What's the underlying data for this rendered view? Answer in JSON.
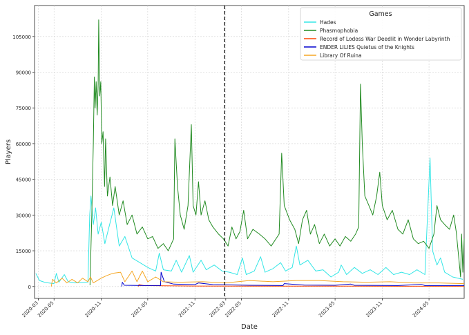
{
  "chart_data": {
    "type": "line",
    "title": "",
    "xlabel": "Date",
    "ylabel": "Players",
    "grid": true,
    "x_range": [
      "2020-02-15",
      "2024-09-15"
    ],
    "ylim": [
      -5000,
      118000
    ],
    "x_ticks": [
      "2020-03",
      "2020-05",
      "2020-11",
      "2021-05",
      "2021-11",
      "2022-03",
      "2022-05",
      "2022-11",
      "2023-05",
      "2023-11",
      "2024-05"
    ],
    "y_ticks": [
      0,
      15000,
      30000,
      45000,
      60000,
      75000,
      90000,
      105000
    ],
    "y_tick_labels": [
      "0",
      "15000",
      "30000",
      "45000",
      "60000",
      "75000",
      "90000",
      "105000"
    ],
    "vline": {
      "x": "2022-02-25",
      "style": "dashed",
      "color": "#000000"
    },
    "legend": {
      "title": "Games",
      "position": "top-right"
    },
    "series": [
      {
        "name": "Hades",
        "color": "#33e6e6",
        "points": [
          [
            "2020-02-20",
            5500
          ],
          [
            "2020-03-05",
            2500
          ],
          [
            "2020-03-25",
            1800
          ],
          [
            "2020-04-10",
            1500
          ],
          [
            "2020-05-01",
            1200
          ],
          [
            "2020-05-10",
            5500
          ],
          [
            "2020-05-20",
            1800
          ],
          [
            "2020-06-10",
            5000
          ],
          [
            "2020-06-25",
            2000
          ],
          [
            "2020-07-20",
            1500
          ],
          [
            "2020-08-20",
            1700
          ],
          [
            "2020-09-10",
            1800
          ],
          [
            "2020-09-17",
            30000
          ],
          [
            "2020-09-22",
            38000
          ],
          [
            "2020-10-01",
            26000
          ],
          [
            "2020-10-10",
            33000
          ],
          [
            "2020-10-20",
            22000
          ],
          [
            "2020-11-01",
            27000
          ],
          [
            "2020-11-15",
            18000
          ],
          [
            "2020-12-01",
            25000
          ],
          [
            "2020-12-20",
            33000
          ],
          [
            "2021-01-10",
            17000
          ],
          [
            "2021-02-01",
            21000
          ],
          [
            "2021-03-01",
            12000
          ],
          [
            "2021-04-01",
            10000
          ],
          [
            "2021-05-01",
            8000
          ],
          [
            "2021-06-01",
            6500
          ],
          [
            "2021-06-15",
            14000
          ],
          [
            "2021-07-01",
            7000
          ],
          [
            "2021-08-01",
            6500
          ],
          [
            "2021-08-20",
            11000
          ],
          [
            "2021-09-10",
            6000
          ],
          [
            "2021-10-10",
            13000
          ],
          [
            "2021-10-25",
            6000
          ],
          [
            "2021-11-25",
            11000
          ],
          [
            "2021-12-15",
            7000
          ],
          [
            "2022-01-15",
            9000
          ],
          [
            "2022-02-15",
            6500
          ],
          [
            "2022-03-15",
            6000
          ],
          [
            "2022-04-15",
            5000
          ],
          [
            "2022-05-05",
            12000
          ],
          [
            "2022-05-20",
            5000
          ],
          [
            "2022-06-20",
            6500
          ],
          [
            "2022-07-15",
            12500
          ],
          [
            "2022-08-01",
            6000
          ],
          [
            "2022-09-01",
            7500
          ],
          [
            "2022-10-01",
            10000
          ],
          [
            "2022-10-20",
            6500
          ],
          [
            "2022-11-15",
            8000
          ],
          [
            "2022-12-01",
            17000
          ],
          [
            "2022-12-15",
            9000
          ],
          [
            "2023-01-15",
            11000
          ],
          [
            "2023-02-15",
            6500
          ],
          [
            "2023-03-15",
            7000
          ],
          [
            "2023-04-15",
            4000
          ],
          [
            "2023-05-15",
            6000
          ],
          [
            "2023-05-25",
            9000
          ],
          [
            "2023-06-15",
            5000
          ],
          [
            "2023-07-15",
            8000
          ],
          [
            "2023-08-15",
            5500
          ],
          [
            "2023-09-15",
            7000
          ],
          [
            "2023-10-15",
            5000
          ],
          [
            "2023-11-15",
            8000
          ],
          [
            "2023-12-15",
            5000
          ],
          [
            "2024-01-15",
            6000
          ],
          [
            "2024-02-15",
            5000
          ],
          [
            "2024-03-15",
            7000
          ],
          [
            "2024-04-15",
            5000
          ],
          [
            "2024-05-05",
            54000
          ],
          [
            "2024-05-15",
            15000
          ],
          [
            "2024-06-01",
            9000
          ],
          [
            "2024-06-15",
            12000
          ],
          [
            "2024-07-01",
            6000
          ],
          [
            "2024-08-01",
            4000
          ],
          [
            "2024-09-10",
            3000
          ]
        ]
      },
      {
        "name": "Phasmophobia",
        "color": "#228b22",
        "points": [
          [
            "2020-09-18",
            500
          ],
          [
            "2020-09-25",
            30000
          ],
          [
            "2020-10-01",
            60000
          ],
          [
            "2020-10-05",
            88000
          ],
          [
            "2020-10-08",
            75000
          ],
          [
            "2020-10-12",
            86000
          ],
          [
            "2020-10-16",
            72000
          ],
          [
            "2020-10-20",
            85000
          ],
          [
            "2020-10-22",
            112000
          ],
          [
            "2020-10-26",
            80000
          ],
          [
            "2020-10-30",
            86000
          ],
          [
            "2020-11-03",
            60000
          ],
          [
            "2020-11-08",
            65000
          ],
          [
            "2020-11-14",
            42000
          ],
          [
            "2020-11-18",
            62000
          ],
          [
            "2020-11-25",
            38000
          ],
          [
            "2020-12-05",
            46000
          ],
          [
            "2020-12-15",
            34000
          ],
          [
            "2020-12-25",
            42000
          ],
          [
            "2021-01-10",
            30000
          ],
          [
            "2021-01-25",
            36000
          ],
          [
            "2021-02-10",
            26000
          ],
          [
            "2021-03-01",
            30000
          ],
          [
            "2021-03-20",
            22000
          ],
          [
            "2021-04-10",
            25000
          ],
          [
            "2021-05-01",
            20000
          ],
          [
            "2021-05-20",
            21000
          ],
          [
            "2021-06-10",
            16000
          ],
          [
            "2021-07-01",
            18000
          ],
          [
            "2021-07-20",
            15000
          ],
          [
            "2021-08-10",
            20000
          ],
          [
            "2021-08-15",
            62000
          ],
          [
            "2021-08-25",
            42000
          ],
          [
            "2021-09-05",
            30000
          ],
          [
            "2021-09-20",
            24000
          ],
          [
            "2021-10-05",
            34000
          ],
          [
            "2021-10-18",
            68000
          ],
          [
            "2021-10-25",
            34000
          ],
          [
            "2021-11-05",
            30000
          ],
          [
            "2021-11-15",
            44000
          ],
          [
            "2021-11-25",
            30000
          ],
          [
            "2021-12-10",
            36000
          ],
          [
            "2021-12-25",
            28000
          ],
          [
            "2022-01-10",
            25000
          ],
          [
            "2022-02-01",
            22000
          ],
          [
            "2022-02-20",
            20000
          ],
          [
            "2022-03-10",
            17000
          ],
          [
            "2022-03-25",
            25000
          ],
          [
            "2022-04-10",
            20000
          ],
          [
            "2022-04-25",
            23000
          ],
          [
            "2022-05-10",
            32000
          ],
          [
            "2022-05-25",
            20000
          ],
          [
            "2022-06-15",
            24000
          ],
          [
            "2022-07-10",
            22000
          ],
          [
            "2022-08-01",
            20000
          ],
          [
            "2022-08-25",
            17000
          ],
          [
            "2022-09-25",
            22000
          ],
          [
            "2022-10-05",
            56000
          ],
          [
            "2022-10-15",
            34000
          ],
          [
            "2022-11-05",
            28000
          ],
          [
            "2022-11-25",
            24000
          ],
          [
            "2022-12-10",
            18000
          ],
          [
            "2022-12-25",
            28000
          ],
          [
            "2023-01-10",
            32000
          ],
          [
            "2023-01-25",
            22000
          ],
          [
            "2023-02-10",
            26000
          ],
          [
            "2023-03-01",
            18000
          ],
          [
            "2023-03-20",
            22000
          ],
          [
            "2023-04-10",
            17000
          ],
          [
            "2023-05-01",
            20000
          ],
          [
            "2023-05-20",
            17000
          ],
          [
            "2023-06-10",
            21000
          ],
          [
            "2023-07-01",
            19000
          ],
          [
            "2023-07-20",
            22000
          ],
          [
            "2023-08-01",
            25000
          ],
          [
            "2023-08-08",
            85000
          ],
          [
            "2023-08-15",
            60000
          ],
          [
            "2023-08-25",
            38000
          ],
          [
            "2023-09-10",
            34000
          ],
          [
            "2023-09-25",
            30000
          ],
          [
            "2023-10-10",
            38000
          ],
          [
            "2023-10-22",
            48000
          ],
          [
            "2023-11-01",
            34000
          ],
          [
            "2023-11-20",
            28000
          ],
          [
            "2023-12-10",
            32000
          ],
          [
            "2024-01-01",
            24000
          ],
          [
            "2024-01-20",
            22000
          ],
          [
            "2024-02-10",
            28000
          ],
          [
            "2024-03-01",
            20000
          ],
          [
            "2024-03-20",
            18000
          ],
          [
            "2024-04-10",
            19000
          ],
          [
            "2024-05-01",
            16000
          ],
          [
            "2024-05-20",
            22000
          ],
          [
            "2024-06-01",
            34000
          ],
          [
            "2024-06-15",
            28000
          ],
          [
            "2024-07-01",
            26000
          ],
          [
            "2024-07-20",
            24000
          ],
          [
            "2024-08-05",
            30000
          ],
          [
            "2024-08-15",
            23000
          ],
          [
            "2024-08-25",
            12000
          ],
          [
            "2024-09-01",
            4000
          ],
          [
            "2024-09-05",
            22000
          ],
          [
            "2024-09-10",
            6000
          ],
          [
            "2024-09-15",
            20000
          ]
        ]
      },
      {
        "name": "Record of Lodoss War Deedlit in Wonder Labyrinth",
        "color": "#ff4500",
        "points": [
          [
            "2021-03-25",
            0
          ],
          [
            "2021-03-28",
            800
          ],
          [
            "2021-04-15",
            400
          ],
          [
            "2021-07-01",
            300
          ],
          [
            "2021-11-01",
            200
          ],
          [
            "2022-06-01",
            150
          ],
          [
            "2023-01-01",
            150
          ],
          [
            "2024-01-01",
            100
          ],
          [
            "2024-09-15",
            100
          ]
        ]
      },
      {
        "name": "ENDER LILIES Quietus of the Knights",
        "color": "#0000cd",
        "points": [
          [
            "2021-01-20",
            0
          ],
          [
            "2021-01-22",
            1800
          ],
          [
            "2021-01-30",
            500
          ],
          [
            "2021-04-10",
            400
          ],
          [
            "2021-06-20",
            400
          ],
          [
            "2021-06-22",
            6000
          ],
          [
            "2021-07-05",
            2000
          ],
          [
            "2021-08-10",
            1000
          ],
          [
            "2021-11-01",
            800
          ],
          [
            "2021-11-15",
            1500
          ],
          [
            "2022-01-10",
            800
          ],
          [
            "2022-06-01",
            500
          ],
          [
            "2022-10-10",
            400
          ],
          [
            "2022-10-15",
            1200
          ],
          [
            "2023-01-01",
            600
          ],
          [
            "2023-05-01",
            500
          ],
          [
            "2023-07-01",
            1000
          ],
          [
            "2023-07-15",
            500
          ],
          [
            "2024-01-01",
            400
          ],
          [
            "2024-04-01",
            900
          ],
          [
            "2024-04-15",
            400
          ],
          [
            "2024-09-15",
            400
          ]
        ]
      },
      {
        "name": "Library Of Ruina",
        "color": "#f5a623",
        "points": [
          [
            "2020-04-20",
            0
          ],
          [
            "2020-04-25",
            3000
          ],
          [
            "2020-05-10",
            1500
          ],
          [
            "2020-06-01",
            3500
          ],
          [
            "2020-06-20",
            1500
          ],
          [
            "2020-07-10",
            3000
          ],
          [
            "2020-08-01",
            1500
          ],
          [
            "2020-08-20",
            3500
          ],
          [
            "2020-09-10",
            2000
          ],
          [
            "2020-09-20",
            4000
          ],
          [
            "2020-10-01",
            1500
          ],
          [
            "2020-11-01",
            3500
          ],
          [
            "2020-11-20",
            4500
          ],
          [
            "2020-12-15",
            5500
          ],
          [
            "2021-01-15",
            6000
          ],
          [
            "2021-02-01",
            2000
          ],
          [
            "2021-03-01",
            6500
          ],
          [
            "2021-03-20",
            2000
          ],
          [
            "2021-04-10",
            6500
          ],
          [
            "2021-05-01",
            2000
          ],
          [
            "2021-06-01",
            4000
          ],
          [
            "2021-07-01",
            2000
          ],
          [
            "2021-09-01",
            1800
          ],
          [
            "2021-12-01",
            2000
          ],
          [
            "2022-03-01",
            1500
          ],
          [
            "2022-06-01",
            2500
          ],
          [
            "2022-09-01",
            2000
          ],
          [
            "2022-12-01",
            2500
          ],
          [
            "2023-03-01",
            2500
          ],
          [
            "2023-06-01",
            2000
          ],
          [
            "2023-09-01",
            1800
          ],
          [
            "2023-12-01",
            2000
          ],
          [
            "2024-03-01",
            1500
          ],
          [
            "2024-06-01",
            1500
          ],
          [
            "2024-09-15",
            1200
          ]
        ]
      }
    ]
  }
}
